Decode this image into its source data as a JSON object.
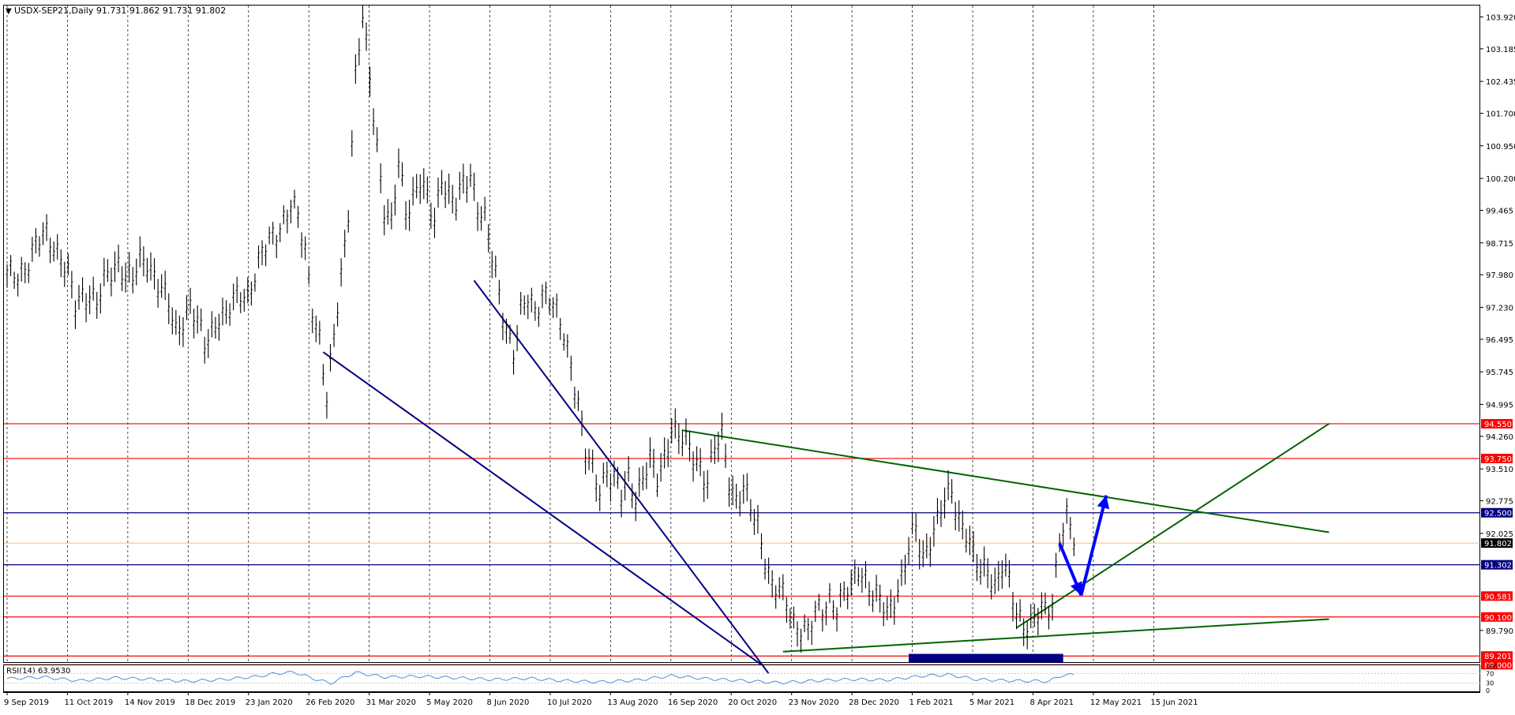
{
  "header": {
    "menu_glyph": "▼",
    "symbol_info": "USDX-SEP21,Daily  91.731 91.862 91.731 91.802"
  },
  "chart_data": {
    "type": "line",
    "symbol": "USDX-SEP21",
    "timeframe": "Daily",
    "ohlc": {
      "open": 91.731,
      "high": 91.862,
      "low": 91.731,
      "close": 91.802
    },
    "ylim": [
      89.06,
      104.2
    ],
    "x_tick_labels": [
      "9 Sep 2019",
      "11 Oct 2019",
      "14 Nov 2019",
      "18 Dec 2019",
      "23 Jan 2020",
      "26 Feb 2020",
      "31 Mar 2020",
      "5 May 2020",
      "8 Jun 2020",
      "10 Jul 2020",
      "13 Aug 2020",
      "16 Sep 2020",
      "20 Oct 2020",
      "23 Nov 2020",
      "28 Dec 2020",
      "1 Feb 2021",
      "5 Mar 2021",
      "8 Apr 2021",
      "12 May 2021",
      "15 Jun 2021"
    ],
    "y_tick_labels": [
      103.92,
      103.185,
      102.435,
      101.7,
      100.95,
      100.2,
      99.465,
      98.715,
      97.98,
      97.23,
      96.495,
      95.745,
      94.995,
      94.26,
      93.51,
      92.775,
      92.025,
      89.79
    ],
    "grid": "vertical dotted",
    "series": [
      {
        "values": [
          [
            0,
            97.9
          ],
          [
            3,
            98.0
          ],
          [
            6,
            98.3
          ],
          [
            8,
            98.6
          ],
          [
            11,
            98.9
          ],
          [
            13,
            98.7
          ],
          [
            15,
            98.4
          ],
          [
            17,
            97.9
          ],
          [
            19,
            97.2
          ],
          [
            21,
            97.5
          ],
          [
            23,
            97.6
          ],
          [
            25,
            97.3
          ],
          [
            27,
            97.7
          ],
          [
            29,
            98.0
          ],
          [
            31,
            98.3
          ],
          [
            33,
            98.0
          ],
          [
            35,
            97.8
          ],
          [
            37,
            98.2
          ],
          [
            39,
            98.3
          ],
          [
            41,
            98.0
          ],
          [
            43,
            97.6
          ],
          [
            45,
            97.2
          ],
          [
            47,
            96.6
          ],
          [
            49,
            97.0
          ],
          [
            51,
            97.3
          ],
          [
            53,
            96.8
          ],
          [
            55,
            96.3
          ],
          [
            57,
            96.7
          ],
          [
            59,
            97.1
          ],
          [
            61,
            97.0
          ],
          [
            63,
            97.3
          ],
          [
            65,
            97.5
          ],
          [
            67,
            97.6
          ],
          [
            69,
            98.0
          ],
          [
            71,
            98.4
          ],
          [
            73,
            98.7
          ],
          [
            75,
            99.0
          ],
          [
            77,
            99.3
          ],
          [
            79,
            99.6
          ],
          [
            81,
            99.2
          ],
          [
            83,
            98.5
          ],
          [
            85,
            97.3
          ],
          [
            87,
            96.5
          ],
          [
            89,
            95.0
          ],
          [
            91,
            96.5
          ],
          [
            93,
            98.0
          ],
          [
            95,
            99.5
          ],
          [
            97,
            102.5
          ],
          [
            99,
            103.8
          ],
          [
            101,
            102.5
          ],
          [
            103,
            101.0
          ],
          [
            105,
            99.5
          ],
          [
            107,
            99.0
          ],
          [
            109,
            100.5
          ],
          [
            111,
            99.5
          ],
          [
            113,
            99.8
          ],
          [
            115,
            100.1
          ],
          [
            117,
            99.6
          ],
          [
            119,
            99.2
          ],
          [
            121,
            100.3
          ],
          [
            123,
            99.8
          ],
          [
            125,
            99.5
          ],
          [
            127,
            100.0
          ],
          [
            129,
            100.3
          ],
          [
            131,
            99.6
          ],
          [
            133,
            99.2
          ],
          [
            135,
            98.3
          ],
          [
            137,
            97.5
          ],
          [
            139,
            96.8
          ],
          [
            141,
            96.2
          ],
          [
            143,
            97.0
          ],
          [
            145,
            97.4
          ],
          [
            147,
            97.2
          ],
          [
            149,
            97.6
          ],
          [
            151,
            97.4
          ],
          [
            153,
            97.0
          ],
          [
            155,
            96.6
          ],
          [
            157,
            96.0
          ],
          [
            159,
            95.0
          ],
          [
            161,
            93.8
          ],
          [
            163,
            93.4
          ],
          [
            165,
            93.1
          ],
          [
            167,
            93.5
          ],
          [
            169,
            93.2
          ],
          [
            171,
            92.8
          ],
          [
            173,
            93.3
          ],
          [
            175,
            92.9
          ],
          [
            177,
            93.3
          ],
          [
            179,
            93.6
          ],
          [
            181,
            93.2
          ],
          [
            183,
            93.8
          ],
          [
            185,
            94.5
          ],
          [
            187,
            94.2
          ],
          [
            189,
            94.0
          ],
          [
            191,
            93.8
          ],
          [
            193,
            93.6
          ],
          [
            195,
            93.2
          ],
          [
            197,
            93.9
          ],
          [
            199,
            94.2
          ],
          [
            201,
            93.3
          ],
          [
            203,
            92.8
          ],
          [
            205,
            93.0
          ],
          [
            207,
            92.5
          ],
          [
            209,
            92.2
          ],
          [
            211,
            91.5
          ],
          [
            213,
            90.8
          ],
          [
            215,
            90.6
          ],
          [
            217,
            90.4
          ],
          [
            219,
            90.0
          ],
          [
            221,
            89.9
          ],
          [
            223,
            89.7
          ],
          [
            225,
            90.1
          ],
          [
            227,
            90.3
          ],
          [
            229,
            90.6
          ],
          [
            231,
            90.3
          ],
          [
            233,
            90.5
          ],
          [
            235,
            90.8
          ],
          [
            237,
            91.3
          ],
          [
            239,
            91.0
          ],
          [
            241,
            90.5
          ],
          [
            243,
            90.4
          ],
          [
            245,
            90.2
          ],
          [
            247,
            90.6
          ],
          [
            249,
            90.9
          ],
          [
            251,
            91.6
          ],
          [
            253,
            92.1
          ],
          [
            255,
            91.5
          ],
          [
            257,
            91.9
          ],
          [
            259,
            92.2
          ],
          [
            261,
            92.7
          ],
          [
            263,
            93.0
          ],
          [
            265,
            92.4
          ],
          [
            267,
            92.0
          ],
          [
            269,
            91.4
          ],
          [
            271,
            91.1
          ],
          [
            273,
            91.3
          ],
          [
            275,
            90.8
          ],
          [
            277,
            91.2
          ],
          [
            279,
            90.8
          ],
          [
            281,
            90.2
          ],
          [
            283,
            90.0
          ],
          [
            285,
            89.9
          ],
          [
            287,
            90.1
          ],
          [
            289,
            90.2
          ],
          [
            291,
            90.5
          ],
          [
            293,
            92.0
          ],
          [
            295,
            92.3
          ],
          [
            297,
            91.8
          ]
        ]
      },
      {
        "name": "RSI(14)",
        "values": [
          [
            0,
            48
          ],
          [
            10,
            55
          ],
          [
            20,
            40
          ],
          [
            30,
            52
          ],
          [
            40,
            46
          ],
          [
            50,
            38
          ],
          [
            60,
            45
          ],
          [
            70,
            58
          ],
          [
            75,
            70
          ],
          [
            80,
            75
          ],
          [
            85,
            50
          ],
          [
            90,
            30
          ],
          [
            97,
            74
          ],
          [
            105,
            55
          ],
          [
            115,
            58
          ],
          [
            125,
            52
          ],
          [
            135,
            45
          ],
          [
            145,
            50
          ],
          [
            155,
            40
          ],
          [
            165,
            35
          ],
          [
            175,
            42
          ],
          [
            185,
            60
          ],
          [
            195,
            48
          ],
          [
            205,
            40
          ],
          [
            215,
            32
          ],
          [
            225,
            40
          ],
          [
            235,
            46
          ],
          [
            245,
            43
          ],
          [
            255,
            60
          ],
          [
            262,
            65
          ],
          [
            270,
            45
          ],
          [
            280,
            40
          ],
          [
            290,
            38
          ],
          [
            294,
            64
          ],
          [
            297,
            63.953
          ]
        ]
      }
    ],
    "price_levels": [
      {
        "value": 94.55,
        "label": "94.550",
        "color": "#ff0000"
      },
      {
        "value": 93.75,
        "label": "93.750",
        "color": "#ff0000"
      },
      {
        "value": 92.5,
        "label": "92.500",
        "color": "#000080"
      },
      {
        "value": 91.302,
        "label": "91.302",
        "color": "#000080"
      },
      {
        "value": 90.581,
        "label": "90.581",
        "color": "#ff0000"
      },
      {
        "value": 90.1,
        "label": "90.100",
        "color": "#ff0000"
      },
      {
        "value": 89.201,
        "label": "89.201",
        "color": "#ff0000"
      },
      {
        "value": 89.0,
        "label": "89.000",
        "color": "#ff0000"
      }
    ],
    "current_price": {
      "value": 91.802,
      "label": "91.802",
      "color": "#000000"
    },
    "trend_lines": [
      {
        "color": "#000080",
        "from": [
          130,
          97.85
        ],
        "to": [
          212,
          88.8
        ]
      },
      {
        "color": "#000080",
        "from": [
          88,
          96.2
        ],
        "to": [
          210,
          89.0
        ]
      },
      {
        "color": "#006400",
        "from": [
          188,
          94.4
        ],
        "to": [
          368,
          92.05
        ]
      },
      {
        "color": "#006400",
        "from": [
          216,
          89.3
        ],
        "to": [
          368,
          90.05
        ]
      },
      {
        "color": "#006400",
        "from": [
          281,
          89.85
        ],
        "to": [
          368,
          94.55
        ]
      }
    ],
    "arrows": [
      {
        "color": "#0000ff",
        "from": [
          293,
          91.8
        ],
        "to": [
          299,
          90.6
        ]
      },
      {
        "color": "#0000ff",
        "from": [
          299,
          90.6
        ],
        "to": [
          306,
          92.9
        ]
      }
    ],
    "zone": {
      "color": "#000080",
      "x_range": [
        251,
        294
      ],
      "y_range": [
        89.05,
        89.25
      ]
    },
    "rsi": {
      "label": "RSI(14) 63.9530",
      "period": 14,
      "value": 63.953,
      "levels": [
        70,
        30
      ],
      "range": [
        0,
        100
      ],
      "tick_labels": [
        "100",
        "70",
        "30",
        "0"
      ]
    }
  }
}
